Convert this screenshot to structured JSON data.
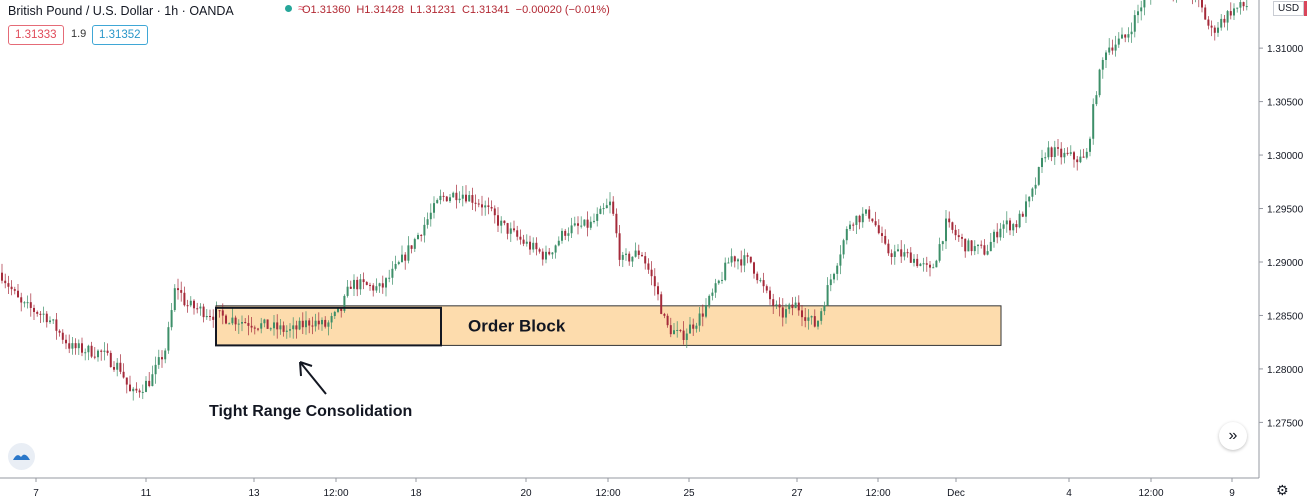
{
  "header": {
    "symbol": "British Pound / U.S. Dollar · 1h · OANDA",
    "open": "O1.31360",
    "high": "H1.31428",
    "low": "L1.31231",
    "close": "C1.31341",
    "change": "−0.00020 (−0.01%)",
    "sell_price": "1.31333",
    "spread": "1.9",
    "buy_price": "1.31352",
    "currency": "USD"
  },
  "colors": {
    "up": "#3d8f69",
    "down": "#a52a3a",
    "block": "#fddcad",
    "text": "#131722"
  },
  "chart_data": {
    "type": "candlestick",
    "x_tick_labels": [
      "7",
      "11",
      "13",
      "12:00",
      "18",
      "20",
      "12:00",
      "25",
      "27",
      "12:00",
      "Dec",
      "4",
      "12:00",
      "9"
    ],
    "y_tick_labels": [
      "1.31000",
      "1.30500",
      "1.30000",
      "1.29500",
      "1.29000",
      "1.28500",
      "1.28000",
      "1.27500"
    ],
    "ylim": [
      1.2698,
      1.3145
    ],
    "approx_path": [
      [
        0,
        1.289
      ],
      [
        20,
        1.286
      ],
      [
        45,
        1.285
      ],
      [
        70,
        1.282
      ],
      [
        100,
        1.2815
      ],
      [
        120,
        1.28
      ],
      [
        130,
        1.2775
      ],
      [
        150,
        1.279
      ],
      [
        165,
        1.282
      ],
      [
        175,
        1.288
      ],
      [
        185,
        1.286
      ],
      [
        200,
        1.2855
      ],
      [
        215,
        1.285
      ],
      [
        240,
        1.2845
      ],
      [
        265,
        1.284
      ],
      [
        290,
        1.2835
      ],
      [
        310,
        1.2845
      ],
      [
        325,
        1.284
      ],
      [
        340,
        1.2855
      ],
      [
        350,
        1.288
      ],
      [
        380,
        1.2875
      ],
      [
        400,
        1.29
      ],
      [
        420,
        1.293
      ],
      [
        440,
        1.296
      ],
      [
        460,
        1.2965
      ],
      [
        480,
        1.2955
      ],
      [
        500,
        1.2935
      ],
      [
        520,
        1.292
      ],
      [
        545,
        1.2905
      ],
      [
        565,
        1.293
      ],
      [
        590,
        1.2935
      ],
      [
        610,
        1.2955
      ],
      [
        620,
        1.29
      ],
      [
        640,
        1.291
      ],
      [
        655,
        1.2875
      ],
      [
        665,
        1.284
      ],
      [
        680,
        1.283
      ],
      [
        700,
        1.285
      ],
      [
        715,
        1.2875
      ],
      [
        730,
        1.2905
      ],
      [
        750,
        1.29
      ],
      [
        765,
        1.287
      ],
      [
        780,
        1.285
      ],
      [
        795,
        1.286
      ],
      [
        815,
        1.284
      ],
      [
        830,
        1.2885
      ],
      [
        850,
        1.294
      ],
      [
        870,
        1.2945
      ],
      [
        885,
        1.291
      ],
      [
        910,
        1.2905
      ],
      [
        930,
        1.289
      ],
      [
        945,
        1.2935
      ],
      [
        965,
        1.2915
      ],
      [
        985,
        1.291
      ],
      [
        1000,
        1.2935
      ],
      [
        1015,
        1.2935
      ],
      [
        1030,
        1.296
      ],
      [
        1045,
        1.3005
      ],
      [
        1060,
        1.3
      ],
      [
        1085,
        1.2995
      ],
      [
        1095,
        1.306
      ],
      [
        1105,
        1.31
      ],
      [
        1125,
        1.311
      ],
      [
        1140,
        1.314
      ],
      [
        1160,
        1.316
      ],
      [
        1195,
        1.315
      ],
      [
        1210,
        1.3115
      ],
      [
        1230,
        1.3135
      ],
      [
        1245,
        1.314
      ]
    ],
    "annotations": {
      "order_block_label": "Order Block",
      "consolidation_label": "Tight Range Consolidation"
    },
    "order_block_range": [
      1.2822,
      1.2859
    ],
    "grid": false
  }
}
